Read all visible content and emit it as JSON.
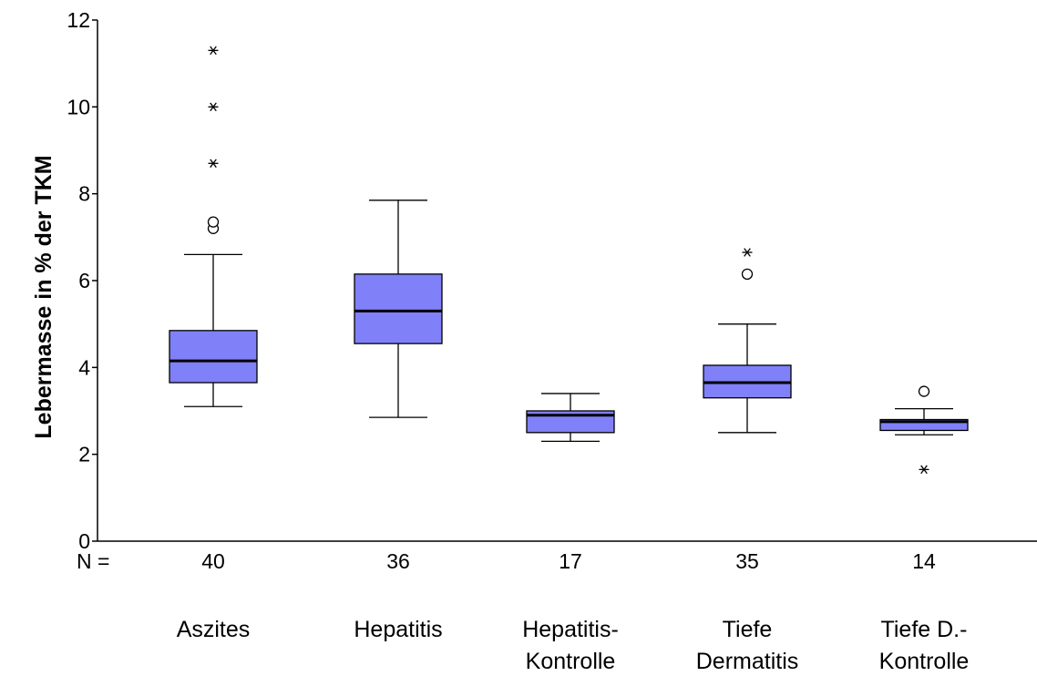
{
  "chart_data": {
    "type": "boxplot",
    "title": "",
    "xlabel": "",
    "ylabel": "Lebermasse in % der TKM",
    "ylim": [
      0,
      12
    ],
    "yticks": [
      "0",
      "2",
      "4",
      "6",
      "8",
      "10",
      "12"
    ],
    "grid": false,
    "n_prefix": "N =",
    "box_color": "#8080F8",
    "categories": [
      {
        "label_lines": [
          "Aszites"
        ],
        "n": "40",
        "min": 3.1,
        "q1": 3.65,
        "median": 4.15,
        "q3": 4.85,
        "max": 6.6,
        "circle_outliers": [
          7.2,
          7.35
        ],
        "star_outliers": [
          8.7,
          10.0,
          11.3
        ]
      },
      {
        "label_lines": [
          "Hepatitis"
        ],
        "n": "36",
        "min": 2.85,
        "q1": 4.55,
        "median": 5.3,
        "q3": 6.15,
        "max": 7.85,
        "circle_outliers": [],
        "star_outliers": []
      },
      {
        "label_lines": [
          "Hepatitis-",
          "Kontrolle"
        ],
        "n": "17",
        "min": 2.3,
        "q1": 2.5,
        "median": 2.9,
        "q3": 3.0,
        "max": 3.4,
        "circle_outliers": [],
        "star_outliers": []
      },
      {
        "label_lines": [
          "Tiefe",
          "Dermatitis"
        ],
        "n": "35",
        "min": 2.5,
        "q1": 3.3,
        "median": 3.65,
        "q3": 4.05,
        "max": 5.0,
        "circle_outliers": [
          6.15
        ],
        "star_outliers": [
          6.65
        ]
      },
      {
        "label_lines": [
          "Tiefe D.-",
          "Kontrolle"
        ],
        "n": "14",
        "min": 2.45,
        "q1": 2.55,
        "median": 2.75,
        "q3": 2.8,
        "max": 3.05,
        "circle_outliers": [
          3.45
        ],
        "star_outliers": [
          1.65
        ]
      }
    ]
  }
}
